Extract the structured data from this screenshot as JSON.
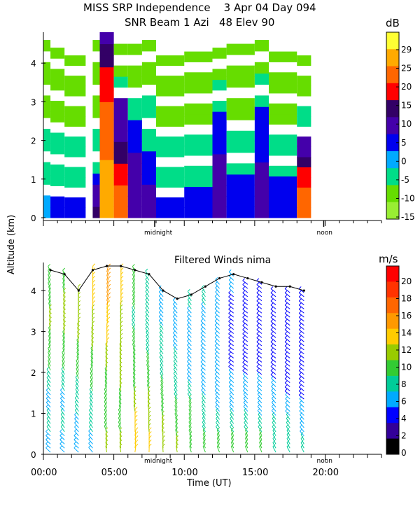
{
  "header": {
    "line1": "MISS SRP Independence    3 Apr 04 Day 094",
    "line2": "SNR Beam 1 Azi   48 Elev 90"
  },
  "shared": {
    "ylabel": "Altitude (km)",
    "xlabel": "Time (UT)",
    "marker_midnight": "midnight",
    "marker_noon": "noon",
    "x_ticks": [
      "00:00",
      "05:00",
      "10:00",
      "15:00",
      "20:00"
    ]
  },
  "chart_data": [
    {
      "type": "heatmap",
      "title": "SNR Beam 1 Azi   48 Elev 90",
      "ylabel": "Altitude (km)",
      "ylim": [
        0,
        4.8
      ],
      "yticks": [
        0,
        1,
        2,
        3,
        4
      ],
      "xlim_hours": [
        0,
        24
      ],
      "data_time_range_hours": [
        0,
        19
      ],
      "colorbar": {
        "unit": "dB",
        "ticks": [
          29,
          25,
          20,
          15,
          10,
          5,
          0,
          -5,
          -10,
          -15
        ],
        "tick_labels": [
          "",
          "25",
          "20",
          "15",
          "10",
          "5",
          "0",
          "-5",
          "-10",
          "-15"
        ],
        "colors": [
          "#ffff33",
          "#ffaa00",
          "#ff6600",
          "#ff0000",
          "#330066",
          "#4400aa",
          "#0000ee",
          "#00aaff",
          "#00dd88",
          "#66dd00",
          "#99ee33"
        ]
      },
      "columns": [
        {
          "t_start": 0.0,
          "t_end": 0.5,
          "top_km": 4.6,
          "strong_top": 0.7,
          "max_db": -2
        },
        {
          "t_start": 0.5,
          "t_end": 1.5,
          "top_km": 4.4,
          "strong_top": 0.5,
          "max_db": 2
        },
        {
          "t_start": 1.5,
          "t_end": 3.0,
          "top_km": 4.2,
          "strong_top": 0.4,
          "max_db": 3
        },
        {
          "t_start": 3.5,
          "t_end": 4.0,
          "top_km": 4.6,
          "strong_top": 1.2,
          "max_db": 12
        },
        {
          "t_start": 4.0,
          "t_end": 5.0,
          "top_km": 4.8,
          "strong_top": 4.8,
          "max_db": 25
        },
        {
          "t_start": 5.0,
          "t_end": 6.0,
          "top_km": 4.5,
          "strong_top": 3.0,
          "max_db": 18
        },
        {
          "t_start": 6.0,
          "t_end": 7.0,
          "top_km": 4.5,
          "strong_top": 2.6,
          "max_db": 10
        },
        {
          "t_start": 7.0,
          "t_end": 8.0,
          "top_km": 4.6,
          "strong_top": 1.8,
          "max_db": 8
        },
        {
          "t_start": 8.0,
          "t_end": 10.0,
          "top_km": 4.2,
          "strong_top": 0.6,
          "max_db": 2
        },
        {
          "t_start": 10.0,
          "t_end": 12.0,
          "top_km": 4.3,
          "strong_top": 0.8,
          "max_db": 3
        },
        {
          "t_start": 12.0,
          "t_end": 13.0,
          "top_km": 4.4,
          "strong_top": 2.8,
          "max_db": 9
        },
        {
          "t_start": 13.0,
          "t_end": 15.0,
          "top_km": 4.5,
          "strong_top": 1.0,
          "max_db": 4
        },
        {
          "t_start": 15.0,
          "t_end": 16.0,
          "top_km": 4.6,
          "strong_top": 3.0,
          "max_db": 8
        },
        {
          "t_start": 16.0,
          "t_end": 18.0,
          "top_km": 4.3,
          "strong_top": 1.0,
          "max_db": 4
        },
        {
          "t_start": 18.0,
          "t_end": 19.0,
          "top_km": 4.2,
          "strong_top": 2.2,
          "max_db": 20
        }
      ]
    },
    {
      "type": "scatter",
      "title": "Filtered Winds nima",
      "subtype": "wind-barbs",
      "ylabel": "Altitude (km)",
      "xlabel": "Time (UT)",
      "ylim": [
        0,
        4.6
      ],
      "yticks": [
        0,
        1,
        2,
        3,
        4
      ],
      "xlim_hours": [
        0,
        24
      ],
      "data_time_range_hours": [
        0,
        19
      ],
      "colorbar": {
        "unit": "m/s",
        "ticks": [
          20,
          18,
          16,
          14,
          12,
          10,
          8,
          6,
          4,
          2,
          0
        ],
        "colors": [
          "#ff0000",
          "#ff3300",
          "#ff6600",
          "#ff9900",
          "#ffcc00",
          "#99cc00",
          "#33cc33",
          "#00cc99",
          "#00aaff",
          "#0000ff",
          "#330099",
          "#000000"
        ]
      },
      "speed_contour_ms": 10,
      "columns": [
        {
          "t": 0.5,
          "top_km": 4.5,
          "speeds": [
            8,
            9,
            10,
            9,
            8,
            6,
            5,
            6,
            4
          ]
        },
        {
          "t": 1.5,
          "top_km": 4.4,
          "speeds": [
            9,
            10,
            10,
            9,
            8,
            7,
            5,
            6,
            4
          ]
        },
        {
          "t": 2.5,
          "top_km": 4.0,
          "speeds": [
            11,
            11,
            10,
            9,
            8,
            7,
            6,
            5,
            4
          ]
        },
        {
          "t": 3.5,
          "top_km": 4.5,
          "speeds": [
            12,
            12,
            11,
            10,
            9,
            8,
            7,
            6,
            5
          ]
        },
        {
          "t": 4.5,
          "top_km": 4.6,
          "speeds": [
            14,
            14,
            13,
            12,
            10,
            9,
            8,
            8,
            10
          ]
        },
        {
          "t": 5.5,
          "top_km": 4.6,
          "speeds": [
            12,
            12,
            11,
            11,
            10,
            10,
            9,
            8,
            10
          ]
        },
        {
          "t": 6.5,
          "top_km": 4.5,
          "speeds": [
            8,
            8,
            7,
            8,
            9,
            9,
            10,
            12,
            13
          ]
        },
        {
          "t": 7.5,
          "top_km": 4.4,
          "speeds": [
            6,
            6,
            6,
            7,
            8,
            9,
            10,
            11,
            12
          ]
        },
        {
          "t": 8.5,
          "top_km": 4.0,
          "speeds": [
            5,
            5,
            6,
            6,
            7,
            8,
            9,
            10,
            11
          ]
        },
        {
          "t": 9.5,
          "top_km": 3.8,
          "speeds": [
            5,
            5,
            5,
            6,
            6,
            7,
            8,
            9,
            10
          ]
        },
        {
          "t": 10.5,
          "top_km": 3.9,
          "speeds": [
            6,
            5,
            5,
            5,
            5,
            6,
            8,
            8,
            9
          ]
        },
        {
          "t": 11.5,
          "top_km": 4.1,
          "speeds": [
            6,
            5,
            4,
            4,
            4,
            5,
            6,
            7,
            8
          ]
        },
        {
          "t": 12.5,
          "top_km": 4.3,
          "speeds": [
            5,
            4,
            4,
            4,
            4,
            4,
            5,
            6,
            8
          ]
        },
        {
          "t": 13.5,
          "top_km": 4.4,
          "speeds": [
            4,
            3,
            3,
            3,
            3,
            4,
            5,
            6,
            8
          ]
        },
        {
          "t": 14.5,
          "top_km": 4.3,
          "speeds": [
            3,
            3,
            3,
            3,
            3,
            4,
            5,
            6,
            8
          ]
        },
        {
          "t": 15.5,
          "top_km": 4.2,
          "speeds": [
            3,
            3,
            3,
            3,
            3,
            4,
            5,
            6,
            8
          ]
        },
        {
          "t": 16.5,
          "top_km": 4.1,
          "speeds": [
            3,
            3,
            3,
            3,
            3,
            4,
            5,
            6,
            7
          ]
        },
        {
          "t": 17.5,
          "top_km": 4.1,
          "speeds": [
            3,
            3,
            3,
            3,
            3,
            3,
            4,
            6,
            7
          ]
        },
        {
          "t": 18.5,
          "top_km": 4.0,
          "speeds": [
            3,
            3,
            3,
            3,
            3,
            3,
            4,
            5,
            7
          ]
        }
      ]
    }
  ]
}
